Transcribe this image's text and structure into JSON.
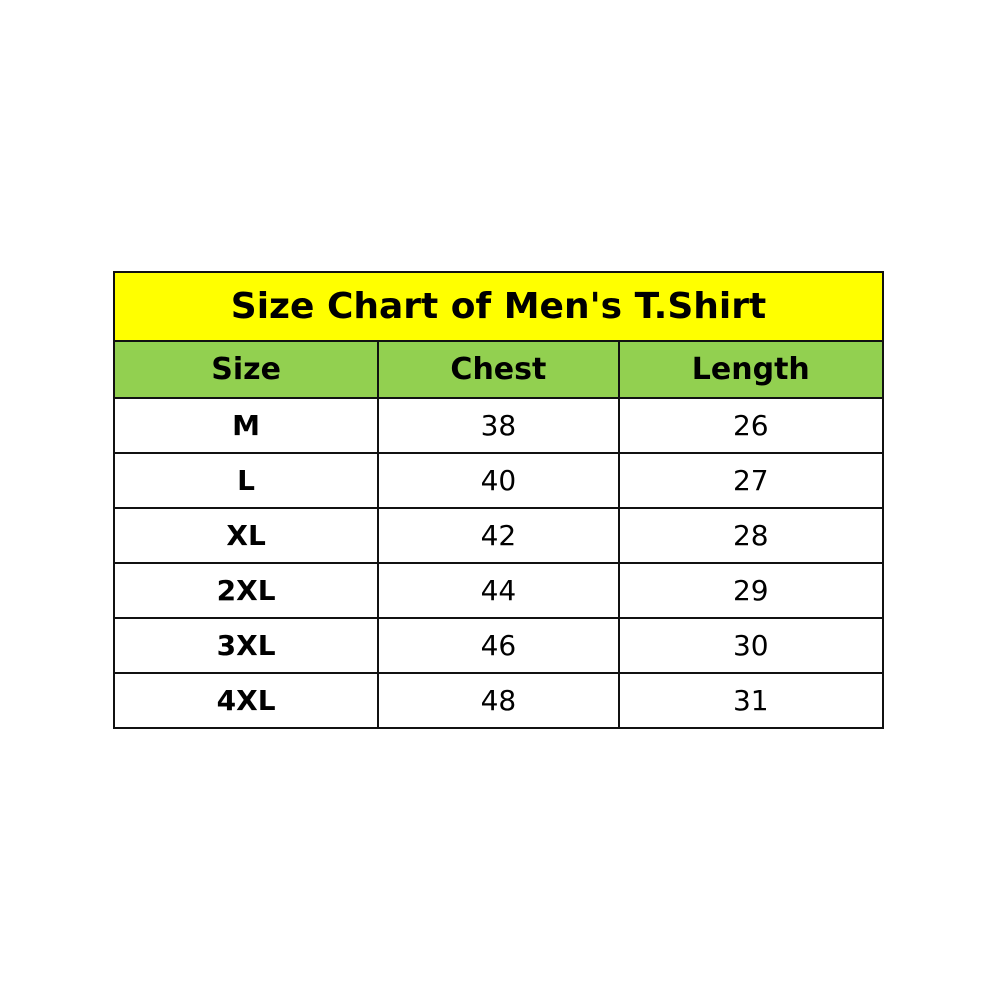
{
  "title": "Size Chart of Men's T.Shirt",
  "colors": {
    "title_bg": "#FFFF00",
    "header_bg": "#92D050"
  },
  "headers": [
    "Size",
    "Chest",
    "Length"
  ],
  "rows": [
    [
      "M",
      "38",
      "26"
    ],
    [
      "L",
      "40",
      "27"
    ],
    [
      "XL",
      "42",
      "28"
    ],
    [
      "2XL",
      "44",
      "29"
    ],
    [
      "3XL",
      "46",
      "30"
    ],
    [
      "4XL",
      "48",
      "31"
    ]
  ]
}
